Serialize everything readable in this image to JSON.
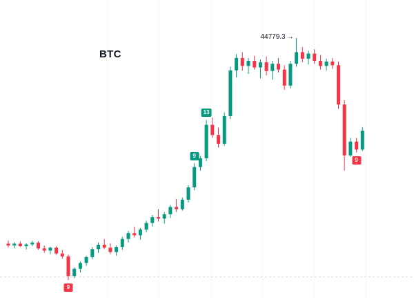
{
  "colors": {
    "up": "#089981",
    "down": "#f23645",
    "badge_up": "#089981",
    "badge_down": "#f23645",
    "grid": "#e3e6ec",
    "level_line": "#d1d4dc",
    "background": "#ffffff",
    "text": "#131722"
  },
  "chart_data": {
    "type": "candlestick",
    "symbol": "BTC",
    "title": "BTC",
    "xlabel": "",
    "ylabel": "",
    "grid": "vertical-faint",
    "legend": "none",
    "ylim": [
      41450,
      44779.3
    ],
    "price_annotation": {
      "text": "44779.3",
      "arrow": "→",
      "value": 44779.3,
      "candle_index": 48
    },
    "level_line": {
      "value": 41500,
      "style": "dashed"
    },
    "badges": [
      {
        "index": 10,
        "label": "9",
        "color": "down",
        "position": "below"
      },
      {
        "index": 31,
        "label": "9",
        "color": "up",
        "position": "above"
      },
      {
        "index": 33,
        "label": "13",
        "color": "up",
        "position": "above"
      },
      {
        "index": 58,
        "label": "9",
        "color": "down",
        "position": "below"
      }
    ],
    "candles": [
      [
        41950,
        41995,
        41900,
        41925
      ],
      [
        41925,
        41970,
        41885,
        41950
      ],
      [
        41950,
        41980,
        41905,
        41915
      ],
      [
        41915,
        41955,
        41870,
        41940
      ],
      [
        41940,
        41990,
        41915,
        41965
      ],
      [
        41965,
        41985,
        41865,
        41885
      ],
      [
        41885,
        41925,
        41825,
        41855
      ],
      [
        41855,
        41910,
        41805,
        41895
      ],
      [
        41895,
        41915,
        41795,
        41815
      ],
      [
        41815,
        41865,
        41745,
        41775
      ],
      [
        41775,
        41800,
        41450,
        41505
      ],
      [
        41505,
        41625,
        41475,
        41605
      ],
      [
        41605,
        41705,
        41555,
        41685
      ],
      [
        41685,
        41785,
        41645,
        41765
      ],
      [
        41765,
        41905,
        41735,
        41875
      ],
      [
        41875,
        41965,
        41825,
        41935
      ],
      [
        41935,
        42015,
        41875,
        41895
      ],
      [
        41895,
        41955,
        41805,
        41835
      ],
      [
        41835,
        41925,
        41785,
        41905
      ],
      [
        41905,
        42045,
        41865,
        42015
      ],
      [
        42015,
        42125,
        41965,
        42095
      ],
      [
        42095,
        42185,
        42035,
        42065
      ],
      [
        42065,
        42165,
        42005,
        42145
      ],
      [
        42145,
        42265,
        42105,
        42235
      ],
      [
        42235,
        42345,
        42185,
        42315
      ],
      [
        42315,
        42425,
        42255,
        42295
      ],
      [
        42295,
        42385,
        42225,
        42355
      ],
      [
        42355,
        42485,
        42305,
        42455
      ],
      [
        42455,
        42565,
        42385,
        42425
      ],
      [
        42425,
        42585,
        42405,
        42555
      ],
      [
        42555,
        42755,
        42515,
        42725
      ],
      [
        42725,
        43055,
        42685,
        43005
      ],
      [
        43005,
        43155,
        42955,
        43125
      ],
      [
        43125,
        43655,
        43085,
        43585
      ],
      [
        43585,
        43685,
        43405,
        43445
      ],
      [
        43445,
        43545,
        43275,
        43325
      ],
      [
        43325,
        43755,
        43295,
        43705
      ],
      [
        43705,
        44385,
        43665,
        44335
      ],
      [
        44335,
        44555,
        44235,
        44505
      ],
      [
        44505,
        44585,
        44330,
        44395
      ],
      [
        44395,
        44505,
        44285,
        44465
      ],
      [
        44465,
        44535,
        44345,
        44375
      ],
      [
        44375,
        44485,
        44225,
        44445
      ],
      [
        44445,
        44525,
        44265,
        44325
      ],
      [
        44325,
        44465,
        44205,
        44425
      ],
      [
        44425,
        44505,
        44305,
        44345
      ],
      [
        44345,
        44405,
        44065,
        44125
      ],
      [
        44125,
        44465,
        44085,
        44425
      ],
      [
        44425,
        44779.3,
        44385,
        44585
      ],
      [
        44585,
        44655,
        44445,
        44495
      ],
      [
        44495,
        44605,
        44415,
        44565
      ],
      [
        44565,
        44625,
        44425,
        44465
      ],
      [
        44465,
        44545,
        44345,
        44395
      ],
      [
        44395,
        44495,
        44335,
        44455
      ],
      [
        44455,
        44505,
        44355,
        44405
      ],
      [
        44405,
        44455,
        43805,
        43865
      ],
      [
        43865,
        43925,
        42955,
        43165
      ],
      [
        43165,
        43405,
        43145,
        43355
      ],
      [
        43355,
        43405,
        43205,
        43245
      ],
      [
        43245,
        43555,
        43225,
        43505
      ]
    ]
  }
}
